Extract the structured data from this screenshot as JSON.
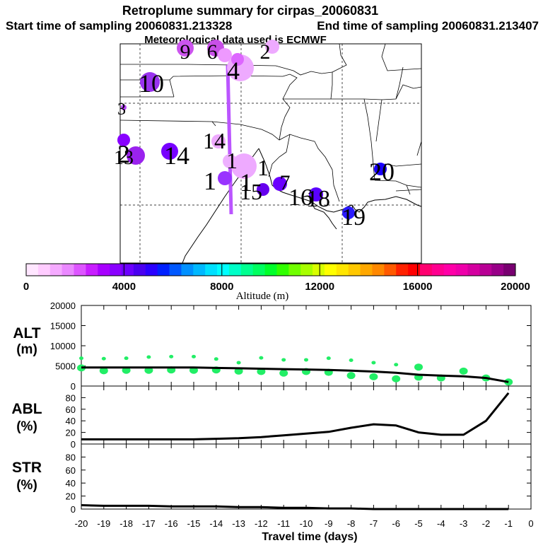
{
  "title": "Retroplume summary for cirpas_20060831",
  "start_text": "Start time of sampling 20060831.213328",
  "end_text": "End time of sampling 20060831.213407",
  "met_text": "Meteorological data used is ECMWF",
  "colorbar": {
    "label": "Altitude (m)",
    "ticks": [
      0,
      4000,
      8000,
      12000,
      16000,
      20000
    ],
    "colors": [
      "#ffe6ff",
      "#ffccff",
      "#f5aaff",
      "#ea88ff",
      "#dd55ff",
      "#c81eff",
      "#a800ff",
      "#8a00ff",
      "#6c00ff",
      "#4a00f0",
      "#2a00ff",
      "#0020ff",
      "#0058ff",
      "#0090ff",
      "#00b8ff",
      "#00e0ff",
      "#00ffff",
      "#00ffc8",
      "#00ff90",
      "#00ff60",
      "#00ff2a",
      "#30ff00",
      "#70ff00",
      "#a8ff00",
      "#d8ff00",
      "#ffff00",
      "#ffe600",
      "#ffc800",
      "#ffa800",
      "#ff8800",
      "#ff5a00",
      "#ff2200",
      "#ff0000",
      "#ff0070",
      "#ff0090",
      "#ff00a8",
      "#ee00aa",
      "#d400a0",
      "#b80095",
      "#980088",
      "#780070"
    ]
  },
  "map": {
    "day_markers": [
      {
        "label": "9",
        "color": "#cc55ee"
      },
      {
        "label": "6",
        "color": "#dd66ff"
      },
      {
        "label": "2",
        "color": "#ee99ff"
      },
      {
        "label": "3",
        "color": "#e088ff"
      },
      {
        "label": "4",
        "color": "#eeaaff"
      },
      {
        "label": "10",
        "color": "#9933ee"
      },
      {
        "label": "2",
        "color": "#bb44ff"
      },
      {
        "label": "13",
        "color": "#8800ff"
      },
      {
        "label": "14",
        "color": "#9a22ee"
      },
      {
        "label": "14",
        "color": "#7700ff"
      },
      {
        "label": "1",
        "color": "#eeaaff"
      },
      {
        "label": "1",
        "color": "#eeaaff"
      },
      {
        "label": "1",
        "color": "#eeb0ff"
      },
      {
        "label": "1",
        "color": "#9933ff"
      },
      {
        "label": "15",
        "color": "#6600ee"
      },
      {
        "label": "7",
        "color": "#6a00ff"
      },
      {
        "label": "16",
        "color": "#5e00f0"
      },
      {
        "label": "18",
        "color": "#5a00ff"
      },
      {
        "label": "20",
        "color": "#1a00ff"
      },
      {
        "label": "19",
        "color": "#2a1aff"
      }
    ]
  },
  "panels": {
    "alt": {
      "label1": "ALT",
      "label2": "(m)"
    },
    "abl": {
      "label1": "ABL",
      "label2": "(%)"
    },
    "str": {
      "label1": "STR",
      "label2": "(%)"
    }
  },
  "xlabel": "Travel time (days)",
  "chart_data": [
    {
      "type": "line",
      "title": "ALT (m)",
      "x": [
        -20,
        -19,
        -18,
        -17,
        -16,
        -15,
        -14,
        -13,
        -12,
        -11,
        -10,
        -9,
        -8,
        -7,
        -6,
        -5,
        -4,
        -3,
        -2,
        -1
      ],
      "values": [
        4600,
        4600,
        4600,
        4600,
        4600,
        4600,
        4500,
        4400,
        4300,
        4200,
        4100,
        4000,
        3800,
        3600,
        3300,
        2800,
        2600,
        2400,
        2000,
        1000
      ],
      "scatter_points": [
        [
          -20,
          4500
        ],
        [
          -20,
          6900
        ],
        [
          -19,
          3800
        ],
        [
          -19,
          6800
        ],
        [
          -18,
          3900
        ],
        [
          -18,
          6900
        ],
        [
          -17,
          3900
        ],
        [
          -17,
          7200
        ],
        [
          -16,
          4000
        ],
        [
          -16,
          7300
        ],
        [
          -15,
          3900
        ],
        [
          -15,
          7300
        ],
        [
          -14,
          4000
        ],
        [
          -14,
          6700
        ],
        [
          -13,
          3700
        ],
        [
          -13,
          5800
        ],
        [
          -12,
          3600
        ],
        [
          -12,
          7000
        ],
        [
          -11,
          3200
        ],
        [
          -11,
          6500
        ],
        [
          -10,
          3600
        ],
        [
          -10,
          6500
        ],
        [
          -9,
          3400
        ],
        [
          -9,
          6900
        ],
        [
          -8,
          2600
        ],
        [
          -8,
          6400
        ],
        [
          -7,
          2300
        ],
        [
          -7,
          5800
        ],
        [
          -6,
          1800
        ],
        [
          -6,
          5300
        ],
        [
          -5,
          2200
        ],
        [
          -5,
          4700
        ],
        [
          -4,
          2000
        ],
        [
          -3,
          3700
        ],
        [
          -2,
          2000
        ],
        [
          -1,
          1000
        ]
      ],
      "xlim": [
        -20,
        0
      ],
      "ylim": [
        0,
        20000
      ],
      "yticks": [
        0,
        5000,
        10000,
        15000,
        20000
      ],
      "xlabel": "Travel time (days)",
      "ylabel": "ALT (m)"
    },
    {
      "type": "line",
      "title": "ABL (%)",
      "x": [
        -20,
        -19,
        -18,
        -17,
        -16,
        -15,
        -14,
        -13,
        -12,
        -11,
        -10,
        -9,
        -8,
        -7,
        -6,
        -5,
        -4,
        -3,
        -2,
        -1
      ],
      "values": [
        8,
        8,
        8,
        8,
        8,
        8,
        9,
        10,
        12,
        15,
        18,
        21,
        28,
        34,
        32,
        20,
        16,
        16,
        40,
        88
      ],
      "xlim": [
        -20,
        0
      ],
      "ylim": [
        0,
        100
      ],
      "yticks": [
        0,
        20,
        40,
        60,
        80
      ],
      "xlabel": "Travel time (days)",
      "ylabel": "ABL (%)"
    },
    {
      "type": "line",
      "title": "STR (%)",
      "x": [
        -20,
        -19,
        -18,
        -17,
        -16,
        -15,
        -14,
        -13,
        -12,
        -11,
        -10,
        -9,
        -8,
        -7,
        -6,
        -5,
        -4,
        -3,
        -2,
        -1
      ],
      "values": [
        6,
        5,
        5,
        5,
        4,
        4,
        4,
        3,
        3,
        2,
        2,
        1,
        1,
        0,
        0,
        0,
        0,
        0,
        0,
        0
      ],
      "xlim": [
        -20,
        0
      ],
      "ylim": [
        0,
        100
      ],
      "yticks": [
        0,
        20,
        40,
        60,
        80
      ],
      "xticks": [
        -20,
        -19,
        -18,
        -17,
        -16,
        -15,
        -14,
        -13,
        -12,
        -11,
        -10,
        -9,
        -8,
        -7,
        -6,
        -5,
        -4,
        -3,
        -2,
        -1,
        0
      ],
      "xlabel": "Travel time (days)",
      "ylabel": "STR (%)"
    }
  ]
}
